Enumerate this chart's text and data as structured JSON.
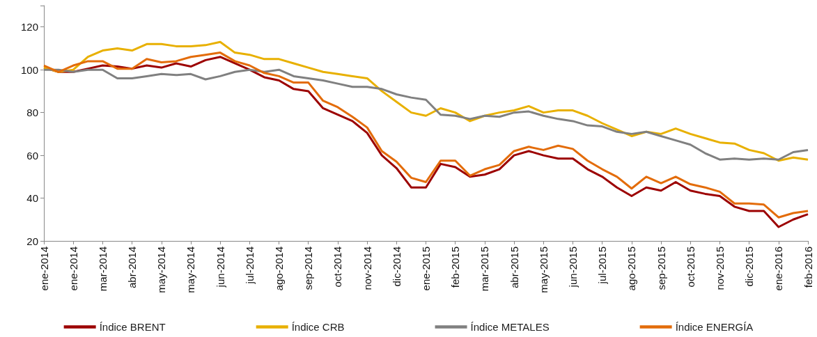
{
  "chart_data": {
    "type": "line",
    "categories": [
      "ene-2014",
      null,
      "ene-2014",
      null,
      "mar-2014",
      null,
      "abr-2014",
      null,
      "may-2014",
      null,
      "may-2014",
      null,
      "jun-2014",
      null,
      "jul-2014",
      null,
      "ago-2014",
      null,
      "sep-2014",
      null,
      "oct-2014",
      null,
      "nov-2014",
      null,
      "dic-2014",
      null,
      "ene-2015",
      null,
      "feb-2015",
      null,
      "mar-2015",
      null,
      "abr-2015",
      null,
      "may-2015",
      null,
      "jun-2015",
      null,
      "jul-2015",
      null,
      "ago-2015",
      null,
      "sep-2015",
      null,
      "oct-2015",
      null,
      "nov-2015",
      null,
      "dic-2015",
      null,
      "ene-2016",
      null,
      "feb-2016"
    ],
    "series": [
      {
        "name": "Índice BRENT",
        "color": "#9c0000",
        "values": [
          101,
          99,
          99,
          100.5,
          102,
          101.5,
          100.5,
          102,
          101,
          103,
          101.5,
          104.5,
          106,
          103,
          100,
          96.5,
          95,
          91,
          90,
          82,
          79,
          76,
          70.5,
          60,
          54,
          45,
          45,
          56,
          54.5,
          50,
          51,
          53.5,
          60,
          62,
          60,
          58.5,
          58.5,
          53.5,
          50,
          45,
          41,
          45,
          43.5,
          47.5,
          43.5,
          42,
          41,
          36,
          34,
          34,
          26.5,
          30,
          32.5
        ]
      },
      {
        "name": "Índice CRB",
        "color": "#e8b000",
        "values": [
          101,
          99,
          100,
          106,
          109,
          110,
          109,
          112,
          112,
          111,
          111,
          111.5,
          113,
          108,
          107,
          105,
          105,
          103,
          101,
          99,
          98,
          97,
          96,
          90,
          85,
          80,
          78.5,
          82,
          80,
          76,
          78.5,
          80,
          81,
          83,
          80,
          81,
          81,
          78.5,
          75,
          72,
          69,
          71,
          70,
          72.5,
          70,
          68,
          66,
          65.5,
          62.5,
          61,
          57.5,
          59,
          58
        ]
      },
      {
        "name": "Índice METALES",
        "color": "#808080",
        "values": [
          100,
          100,
          99,
          100,
          100,
          96,
          96,
          97,
          98,
          97.5,
          98,
          95.5,
          97,
          99,
          100,
          99,
          100,
          97,
          96,
          95,
          93.5,
          92,
          92,
          91,
          88.5,
          87,
          86,
          79,
          78.5,
          77,
          78.5,
          78,
          80,
          80.5,
          78.5,
          77,
          76,
          74,
          73.5,
          71,
          70,
          71,
          69,
          67,
          65,
          61,
          58,
          58.5,
          58,
          58.5,
          58,
          61.5,
          62.5
        ]
      },
      {
        "name": "Índice ENERGÍA",
        "color": "#e36c0a",
        "values": [
          102,
          99,
          102,
          104,
          104,
          100.5,
          100.5,
          105,
          103.5,
          104,
          106,
          107,
          108,
          104,
          102,
          98.5,
          97,
          94,
          94,
          85.5,
          82.5,
          78,
          73,
          62,
          57,
          49.5,
          47.5,
          57.5,
          57.5,
          50.5,
          53.5,
          55.5,
          62,
          64,
          62.5,
          64.5,
          63,
          57.5,
          53.5,
          50,
          44.5,
          50,
          47,
          50,
          46.5,
          45,
          43,
          37.5,
          37.5,
          37,
          31,
          33,
          34
        ]
      }
    ],
    "ylim": [
      20,
      130
    ],
    "yticks": [
      20,
      40,
      60,
      80,
      100,
      120,
      {
        "value": 130,
        "label": null
      }
    ],
    "grid": false,
    "legend": "bottom"
  }
}
